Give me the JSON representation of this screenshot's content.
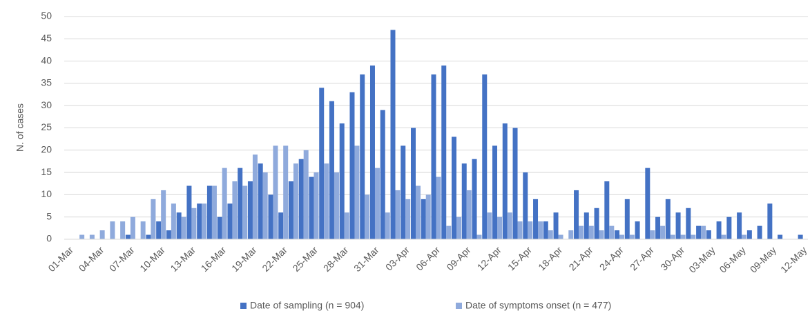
{
  "chart_data": {
    "type": "bar",
    "y_label": "N. of cases",
    "categories": [
      "01-Mar",
      null,
      null,
      "04-Mar",
      null,
      null,
      "07-Mar",
      null,
      null,
      "10-Mar",
      null,
      null,
      "13-Mar",
      null,
      null,
      "16-Mar",
      null,
      null,
      "19-Mar",
      null,
      null,
      "22-Mar",
      null,
      null,
      "25-Mar",
      null,
      null,
      "28-Mar",
      null,
      null,
      "31-Mar",
      null,
      null,
      "03-Apr",
      null,
      null,
      "06-Apr",
      null,
      null,
      "09-Apr",
      null,
      null,
      "12-Apr",
      null,
      null,
      "15-Apr",
      null,
      null,
      "18-Apr",
      null,
      null,
      "21-Apr",
      null,
      null,
      "24-Apr",
      null,
      null,
      "27-Apr",
      null,
      null,
      "30-Apr",
      null,
      null,
      "03-May",
      null,
      null,
      "06-May",
      null,
      null,
      "09-May",
      null,
      null,
      "12-May"
    ],
    "series": [
      {
        "name": "Date of sampling (n = 904)",
        "color": "#4472c4",
        "values": [
          0,
          0,
          0,
          0,
          0,
          0,
          1,
          0,
          1,
          4,
          2,
          6,
          12,
          8,
          12,
          5,
          8,
          16,
          13,
          17,
          10,
          6,
          13,
          18,
          14,
          34,
          31,
          26,
          33,
          37,
          39,
          29,
          47,
          21,
          25,
          9,
          37,
          39,
          23,
          17,
          18,
          37,
          21,
          26,
          25,
          15,
          9,
          4,
          6,
          0,
          11,
          6,
          7,
          13,
          2,
          9,
          4,
          16,
          5,
          9,
          6,
          7,
          3,
          2,
          4,
          5,
          6,
          2,
          3,
          8,
          1,
          0,
          1
        ]
      },
      {
        "name": "Date of symptoms onset (n = 477)",
        "color": "#8faadc",
        "values": [
          0,
          1,
          1,
          2,
          4,
          4,
          5,
          4,
          9,
          11,
          8,
          5,
          7,
          8,
          12,
          16,
          13,
          12,
          19,
          15,
          21,
          21,
          17,
          20,
          15,
          17,
          15,
          6,
          21,
          10,
          16,
          6,
          11,
          9,
          12,
          10,
          14,
          3,
          5,
          11,
          1,
          6,
          5,
          6,
          4,
          4,
          4,
          2,
          1,
          2,
          3,
          3,
          2,
          3,
          1,
          1,
          0,
          2,
          3,
          1,
          1,
          1,
          3,
          0,
          1,
          0,
          1,
          0,
          0,
          0,
          0,
          0,
          0
        ]
      }
    ],
    "ylim": [
      0,
      50
    ],
    "yticks": [
      0,
      5,
      10,
      15,
      20,
      25,
      30,
      35,
      40,
      45,
      50
    ],
    "grid": true,
    "legend": "bottom"
  }
}
